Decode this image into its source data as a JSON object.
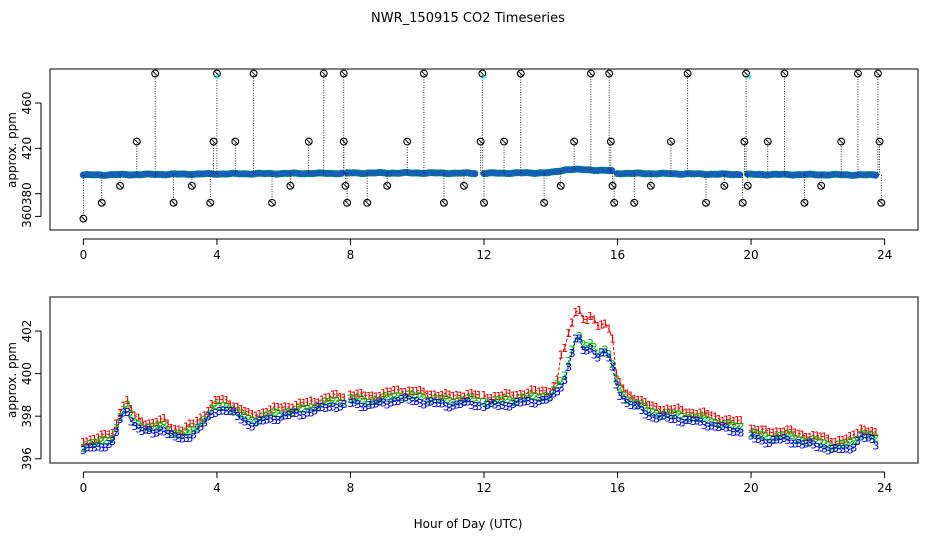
{
  "title": "NWR_150915  CO2 Timeseries",
  "colors": {
    "raw": "#000000",
    "flagged": "#00d7e6",
    "s1": "#e00000",
    "s2": "#00c000",
    "s3": "#0000e0",
    "base": "#2050d0",
    "base_edge": "#008080"
  },
  "chart_data": [
    {
      "type": "scatter",
      "name": "raw-timeseries",
      "xlabel": "",
      "ylabel": "approx. ppm",
      "xlim": [
        -1.0,
        25.0
      ],
      "ylim": [
        348,
        490
      ],
      "xticks": [
        "0",
        "4",
        "8",
        "12",
        "16",
        "20",
        "24"
      ],
      "xtick_values": [
        0,
        4,
        8,
        12,
        16,
        20,
        24
      ],
      "yticks": [
        "360",
        "380",
        "420",
        "460"
      ],
      "ytick_values": [
        360,
        380,
        420,
        460
      ],
      "baseline_segments": [
        {
          "x": [
            0.0,
            2.0,
            4.0,
            6.0,
            7.8
          ],
          "y": [
            396.5,
            397.0,
            397.5,
            397.8,
            398.0
          ]
        },
        {
          "x": [
            7.9,
            10.0,
            11.8
          ],
          "y": [
            398.2,
            398.3,
            398.0
          ]
        },
        {
          "x": [
            12.0,
            14.0,
            14.5,
            15.2,
            15.9
          ],
          "y": [
            398.0,
            398.5,
            401.5,
            401.0,
            400.0
          ]
        },
        {
          "x": [
            16.0,
            18.0,
            19.7
          ],
          "y": [
            398.0,
            397.5,
            397.0
          ]
        },
        {
          "x": [
            19.9,
            22.0,
            23.8
          ],
          "y": [
            397.0,
            396.8,
            396.5
          ]
        }
      ],
      "spikes": {
        "x": [
          0.0,
          0.55,
          1.1,
          1.6,
          2.15,
          2.7,
          3.25,
          3.8,
          3.9,
          4.0,
          4.55,
          5.1,
          5.65,
          6.2,
          6.75,
          7.2,
          7.8,
          7.8,
          7.85,
          7.9,
          8.5,
          9.1,
          9.7,
          10.2,
          10.8,
          11.4,
          11.9,
          11.95,
          12.0,
          12.6,
          13.1,
          13.8,
          14.3,
          14.7,
          15.2,
          15.75,
          15.8,
          15.85,
          15.9,
          16.5,
          17.0,
          17.6,
          18.1,
          18.65,
          19.2,
          19.75,
          19.8,
          19.85,
          19.9,
          20.5,
          21.0,
          21.6,
          22.1,
          22.7,
          23.2,
          23.8,
          23.85,
          23.9
        ],
        "y": [
          358,
          372,
          387,
          426,
          486,
          372,
          387,
          372,
          426,
          486,
          426,
          486,
          372,
          387,
          426,
          486,
          486,
          426,
          387,
          372,
          372,
          387,
          426,
          486,
          372,
          387,
          426,
          486,
          372,
          426,
          486,
          372,
          387,
          426,
          486,
          486,
          426,
          387,
          372,
          372,
          387,
          426,
          486,
          372,
          387,
          372,
          426,
          486,
          387,
          426,
          486,
          372,
          387,
          426,
          486,
          486,
          426,
          372
        ]
      },
      "flagged_points": {
        "x": [
          4.0,
          12.0,
          19.95
        ],
        "y": [
          481,
          481,
          481
        ]
      }
    },
    {
      "type": "line",
      "name": "averaged-timeseries",
      "xlabel": "Hour of Day (UTC)",
      "ylabel": "approx. ppm",
      "xlim": [
        -1.0,
        25.0
      ],
      "ylim": [
        395.8,
        403.6
      ],
      "xticks": [
        "0",
        "4",
        "8",
        "12",
        "16",
        "20",
        "24"
      ],
      "xtick_values": [
        0,
        4,
        8,
        12,
        16,
        20,
        24
      ],
      "yticks": [
        "396",
        "398",
        "400",
        "402"
      ],
      "ytick_values": [
        396,
        398,
        400,
        402
      ],
      "series": [
        {
          "name": "1",
          "offset": 0.45,
          "symbol": "1"
        },
        {
          "name": "2",
          "offset": 0.2,
          "symbol": "2"
        },
        {
          "name": "3",
          "offset": 0.0,
          "symbol": "3"
        }
      ],
      "base_segments": [
        {
          "x": [
            0.0,
            0.3,
            0.6,
            0.9,
            1.1,
            1.3,
            1.5,
            1.8,
            2.1,
            2.4,
            2.7,
            3.0,
            3.3,
            3.6,
            3.8,
            4.0,
            4.3,
            4.6,
            5.0,
            5.5,
            6.0,
            6.5,
            7.0,
            7.5,
            7.9
          ],
          "y": [
            396.4,
            396.5,
            396.6,
            396.8,
            397.8,
            398.3,
            397.6,
            397.3,
            397.2,
            397.4,
            397.0,
            396.9,
            397.2,
            397.6,
            398.0,
            398.3,
            398.3,
            398.0,
            397.6,
            397.8,
            398.0,
            398.1,
            398.3,
            398.5,
            398.5
          ]
        },
        {
          "x": [
            8.0,
            8.5,
            9.0,
            9.5,
            10.0,
            10.5,
            11.0,
            11.5,
            11.9
          ],
          "y": [
            398.6,
            398.5,
            398.6,
            398.8,
            398.7,
            398.6,
            398.5,
            398.6,
            398.5
          ]
        },
        {
          "x": [
            12.0,
            12.5,
            13.0,
            13.5,
            14.0,
            14.2,
            14.4,
            14.6,
            14.8,
            15.0,
            15.2,
            15.4,
            15.6,
            15.8,
            16.0,
            16.3,
            16.6,
            17.0,
            17.5,
            18.0,
            18.5,
            19.0,
            19.5,
            19.7
          ],
          "y": [
            398.5,
            398.5,
            398.6,
            398.7,
            398.8,
            399.2,
            399.6,
            400.8,
            401.8,
            401.0,
            401.2,
            400.8,
            401.0,
            400.6,
            399.2,
            398.6,
            398.4,
            398.0,
            397.9,
            397.8,
            397.7,
            397.5,
            397.3,
            397.3
          ]
        },
        {
          "x": [
            20.0,
            20.5,
            21.0,
            21.5,
            22.0,
            22.5,
            23.0,
            23.3,
            23.6,
            23.8
          ],
          "y": [
            397.0,
            396.8,
            396.9,
            396.7,
            396.6,
            396.4,
            396.5,
            397.0,
            396.9,
            396.6
          ]
        }
      ]
    }
  ]
}
